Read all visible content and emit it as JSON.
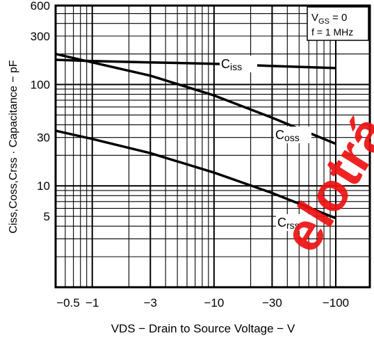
{
  "chart_data": {
    "type": "line",
    "x_scale": "log-reversed",
    "y_scale": "log",
    "x_range": [
      -0.5,
      -100
    ],
    "y_range": [
      1,
      600
    ],
    "x_ticks": [
      {
        "value": -0.5,
        "label": "−0.5"
      },
      {
        "value": -1,
        "label": "−1"
      },
      {
        "value": -3,
        "label": "−3"
      },
      {
        "value": -10,
        "label": "−10"
      },
      {
        "value": -30,
        "label": "−30"
      },
      {
        "value": -100,
        "label": "−100"
      }
    ],
    "y_ticks": [
      {
        "value": 600,
        "label": "600"
      },
      {
        "value": 300,
        "label": "300"
      },
      {
        "value": 100,
        "label": "100"
      },
      {
        "value": 30,
        "label": "30"
      },
      {
        "value": 10,
        "label": "10"
      },
      {
        "value": 5,
        "label": "5"
      }
    ],
    "xlabel": "VDS − Drain to Source Voltage − V",
    "ylabel": "Ciss,Coss,Crss · Capacitance − pF",
    "conditions": [
      "VGS = 0",
      "f = 1 MHz"
    ],
    "grid": true,
    "series": [
      {
        "name": "Ciss",
        "label_main": "C",
        "label_sub": "iss",
        "x": [
          -0.5,
          -1,
          -3,
          -10,
          -30,
          -100
        ],
        "y": [
          175,
          170,
          165,
          160,
          152,
          145
        ]
      },
      {
        "name": "Coss",
        "label_main": "C",
        "label_sub": "oss",
        "x": [
          -0.5,
          -1,
          -3,
          -10,
          -30,
          -100
        ],
        "y": [
          200,
          165,
          122,
          78,
          47,
          26
        ]
      },
      {
        "name": "Crss",
        "label_main": "C",
        "label_sub": "rss",
        "x": [
          -0.5,
          -1,
          -3,
          -10,
          -30,
          -100
        ],
        "y": [
          35,
          29,
          21,
          13.5,
          8.5,
          4.8
        ]
      }
    ]
  },
  "watermark": {
    "text": "elotrá",
    "color": "#ee1111"
  }
}
